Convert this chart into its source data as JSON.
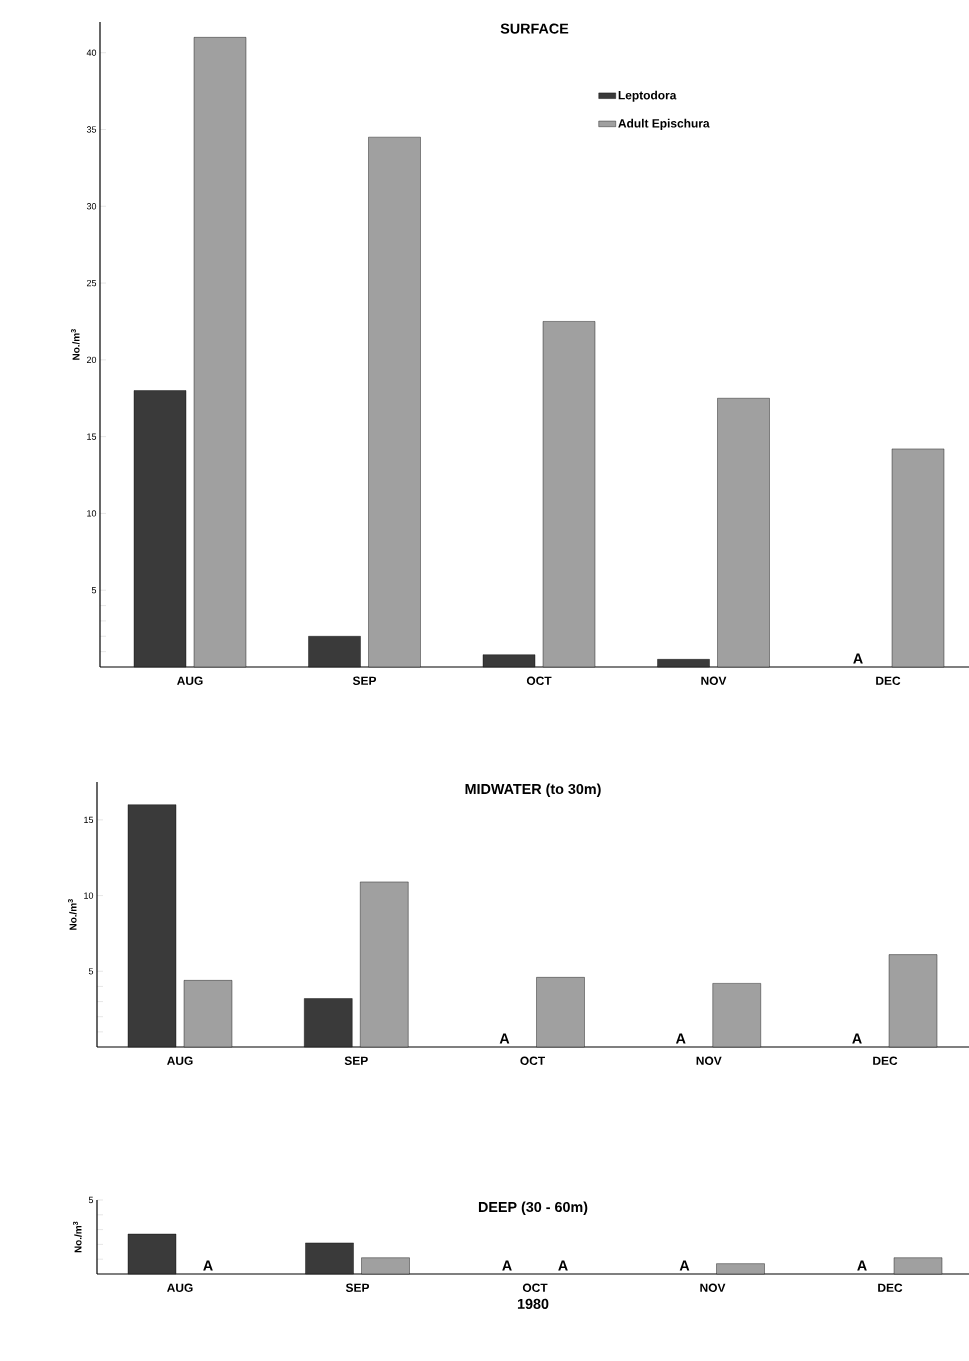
{
  "chart_data": [
    {
      "type": "bar",
      "title": "SURFACE",
      "ylabel": "No./m$^{3}$",
      "categories": [
        "AUG",
        "SEP",
        "OCT",
        "NOV",
        "DEC"
      ],
      "series": [
        {
          "name": "Leptodora",
          "color": "#3a3a3a",
          "values": [
            18,
            2,
            0.8,
            0.5,
            null
          ]
        },
        {
          "name": "Adult Epischura",
          "color": "#a0a0a0",
          "values": [
            41,
            34.5,
            22.5,
            17.5,
            14.2
          ]
        }
      ],
      "ylim": [
        0,
        42
      ],
      "yticks": [
        {
          "value": 1,
          "label": null
        },
        {
          "value": 2,
          "label": null
        },
        {
          "value": 3,
          "label": null
        },
        {
          "value": 4,
          "label": null
        },
        5,
        10,
        15,
        20,
        25,
        30,
        35,
        40
      ],
      "legend": "top right",
      "annotations": [
        "A"
      ]
    },
    {
      "type": "bar",
      "title": "MIDWATER (to 30m)",
      "ylabel": "No./m$^{3}$",
      "categories": [
        "AUG",
        "SEP",
        "OCT",
        "NOV",
        "DEC"
      ],
      "series": [
        {
          "color": "#3a3a3a",
          "values": [
            16,
            3.2,
            null,
            null,
            null
          ]
        },
        {
          "color": "#a0a0a0",
          "values": [
            4.4,
            10.9,
            4.6,
            4.2,
            6.1
          ]
        }
      ],
      "ylim": [
        0,
        17.5
      ],
      "yticks": [
        {
          "value": 1,
          "label": null
        },
        {
          "value": 2,
          "label": null
        },
        {
          "value": 3,
          "label": null
        },
        {
          "value": 4,
          "label": null
        },
        5,
        10,
        15
      ],
      "annotations": [
        "A",
        "A",
        "A"
      ]
    },
    {
      "type": "bar",
      "title": "DEEP (30 - 60m)",
      "ylabel": "No./m$^{3}$",
      "xlabel": "1980",
      "categories": [
        "AUG",
        "SEP",
        "OCT",
        "NOV",
        "DEC"
      ],
      "series": [
        {
          "color": "#3a3a3a",
          "values": [
            2.7,
            2.1,
            null,
            null,
            null
          ]
        },
        {
          "color": "#a0a0a0",
          "values": [
            null,
            1.1,
            null,
            0.7,
            1.1
          ]
        }
      ],
      "ylim": [
        0,
        5
      ],
      "yticks": [
        {
          "value": 1,
          "label": null
        },
        {
          "value": 2,
          "label": null
        },
        {
          "value": 3,
          "label": null
        },
        {
          "value": 4,
          "label": null
        },
        5
      ],
      "annotations": [
        "A",
        "A",
        "A",
        "A",
        "A"
      ]
    }
  ]
}
